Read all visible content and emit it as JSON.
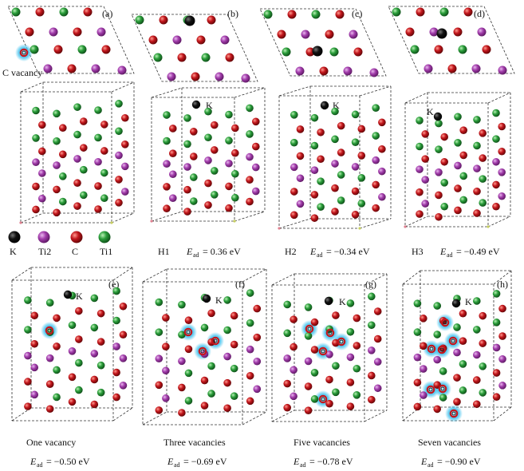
{
  "palette": {
    "K": "#0b0b0b",
    "Ti2": "#a23dab",
    "C": "#c2161c",
    "Ti1": "#2a9d3a",
    "vacancy_glow": "#45c3ee",
    "cell_line": "#333333"
  },
  "top_panels": [
    {
      "tag": "(a)"
    },
    {
      "tag": "(b)",
      "site": "H1",
      "energy": "= 0.36 eV",
      "k_label": "K"
    },
    {
      "tag": "(c)",
      "site": "H2",
      "energy": "= −0.34 eV",
      "k_label": "K"
    },
    {
      "tag": "(d)",
      "site": "H3",
      "energy": "= −0.49 eV",
      "k_label": "K"
    }
  ],
  "c_vacancy_label": "C vacancy",
  "legend": [
    {
      "label": "K",
      "atom": "K"
    },
    {
      "label": "Ti2",
      "atom": "Ti2"
    },
    {
      "label": "C",
      "atom": "C"
    },
    {
      "label": "Ti1",
      "atom": "Ti1"
    }
  ],
  "energy_symbol": "E",
  "energy_subscript": "ad",
  "bottom_panels": [
    {
      "tag": "(e)",
      "caption": "One vacancy",
      "energy": "= −0.50 eV",
      "k_label": "K",
      "vacancies": 1
    },
    {
      "tag": "(f)",
      "caption": "Three vacancies",
      "energy": "= −0.69 eV",
      "k_label": "K",
      "vacancies": 3
    },
    {
      "tag": "(g)",
      "caption": "Five vacancies",
      "energy": "= −0.78 eV",
      "k_label": "K",
      "vacancies": 5
    },
    {
      "tag": "(h)",
      "caption": "Seven vacancies",
      "energy": "= −0.90 eV",
      "k_label": "K",
      "vacancies": 7
    }
  ]
}
